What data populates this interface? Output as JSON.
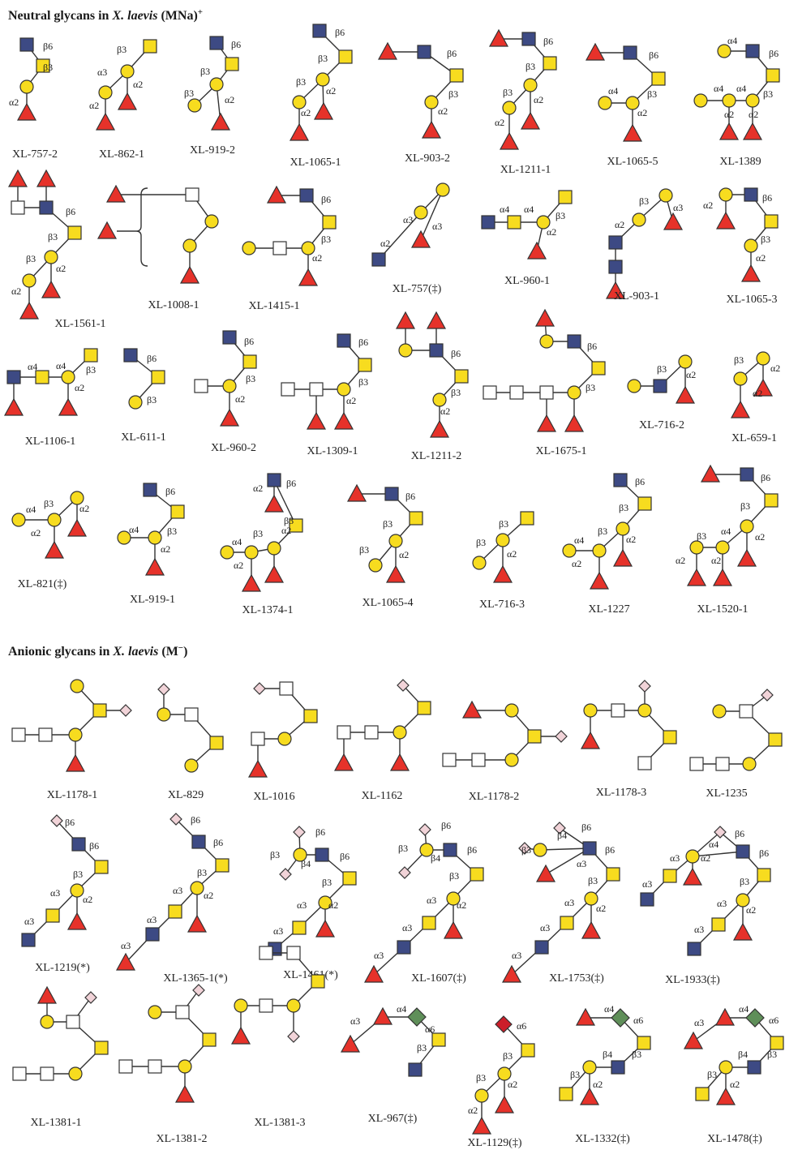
{
  "colors": {
    "glcnac": "#3d4a84",
    "galactose": "#f7dc1f",
    "galnac": "#f7dc1f",
    "fucose": "#e6322a",
    "hexose_white": "#ffffff",
    "sulfate_pink": "#f1d3d8",
    "kdn_green": "#5f8f59",
    "neu_red": "#cc1e2a",
    "line": "#333333"
  },
  "sections": {
    "neutral": {
      "prefix": "Neutral glycans in ",
      "species": "X. laevis",
      "suffix": " (MNa)",
      "sup": "+"
    },
    "anionic": {
      "prefix": "Anionic glycans in ",
      "species": "X. laevis",
      "suffix": " (M",
      "sup": "−",
      "close": ")"
    }
  },
  "glycans": [
    {
      "id": "XL-757-2",
      "links": [
        "β6",
        "β3",
        "α2"
      ],
      "symbols": [
        "glcnac-square",
        "galnac-square",
        "galactose-circle",
        "fucose-triangle"
      ]
    },
    {
      "id": "XL-862-1",
      "links": [
        "β3",
        "α3",
        "α2",
        "α2"
      ],
      "symbols": [
        "galnac-square",
        "galactose-circle",
        "galactose-circle",
        "fucose-triangle",
        "fucose-triangle"
      ]
    },
    {
      "id": "XL-919-2",
      "links": [
        "β6",
        "β3",
        "β3",
        "α2"
      ],
      "symbols": [
        "glcnac-square",
        "galnac-square",
        "galactose-circle",
        "galactose-circle",
        "fucose-triangle"
      ]
    },
    {
      "id": "XL-1065-1",
      "links": [
        "β6",
        "β3",
        "β3",
        "α2",
        "α2"
      ],
      "symbols": [
        "glcnac-square",
        "galnac-square",
        "galactose-circle",
        "galactose-circle",
        "fucose-triangle",
        "fucose-triangle"
      ]
    },
    {
      "id": "XL-903-2",
      "links": [
        "β6",
        "β3",
        "α2"
      ],
      "symbols": [
        "fucose-triangle",
        "glcnac-square",
        "galnac-square",
        "galactose-circle",
        "fucose-triangle"
      ]
    },
    {
      "id": "XL-1211-1",
      "links": [
        "β6",
        "β3",
        "β3",
        "α2",
        "α2"
      ],
      "symbols": [
        "fucose-triangle",
        "glcnac-square",
        "galnac-square",
        "galactose-circle",
        "galactose-circle",
        "fucose-triangle",
        "fucose-triangle"
      ]
    },
    {
      "id": "XL-1065-5",
      "links": [
        "β6",
        "α4",
        "β3",
        "α2"
      ],
      "symbols": [
        "fucose-triangle",
        "glcnac-square",
        "galnac-square",
        "galactose-circle",
        "galactose-circle",
        "fucose-triangle"
      ]
    },
    {
      "id": "XL-1389",
      "links": [
        "α4",
        "β6",
        "α4",
        "α4",
        "β3",
        "α2",
        "α2"
      ],
      "symbols": [
        "galactose-circle",
        "glcnac-square",
        "galnac-square",
        "galactose-circle",
        "galactose-circle",
        "galactose-circle",
        "fucose-triangle",
        "fucose-triangle"
      ]
    },
    {
      "id": "XL-1561-1",
      "links": [
        "β6",
        "β3",
        "β3",
        "α2",
        "α2"
      ],
      "symbols": [
        "fucose-triangle",
        "fucose-triangle",
        "hexose-square",
        "glcnac-square",
        "galnac-square",
        "galactose-circle",
        "galactose-circle",
        "fucose-triangle",
        "fucose-triangle"
      ]
    },
    {
      "id": "XL-1008-1",
      "links": [],
      "symbols": [
        "fucose-triangle",
        "fucose-triangle",
        "hexose-square",
        "galactose-circle",
        "galactose-circle",
        "fucose-triangle"
      ]
    },
    {
      "id": "XL-1415-1",
      "links": [
        "β6",
        "β3",
        "α2"
      ],
      "symbols": [
        "fucose-triangle",
        "glcnac-square",
        "galnac-square",
        "galactose-circle",
        "hexose-square",
        "galactose-circle",
        "fucose-triangle"
      ]
    },
    {
      "id": "XL-757(‡)",
      "links": [
        "α3",
        "α2",
        "α3"
      ],
      "symbols": [
        "galactose-circle",
        "galactose-circle",
        "glcnac-square",
        "fucose-triangle"
      ]
    },
    {
      "id": "XL-960-1",
      "links": [
        "α4",
        "α4",
        "β3",
        "α2"
      ],
      "symbols": [
        "glcnac-square",
        "galnac-square",
        "galactose-circle",
        "galnac-square",
        "fucose-triangle"
      ]
    },
    {
      "id": "XL-903-1",
      "links": [
        "β3",
        "α2",
        "α3"
      ],
      "symbols": [
        "galactose-circle",
        "galactose-circle",
        "glcnac-square",
        "glcnac-square",
        "fucose-triangle",
        "fucose-triangle"
      ]
    },
    {
      "id": "XL-1065-3",
      "links": [
        "β6",
        "α2",
        "β3",
        "α2"
      ],
      "symbols": [
        "galactose-circle",
        "glcnac-square",
        "galnac-square",
        "galactose-circle",
        "fucose-triangle",
        "fucose-triangle"
      ]
    },
    {
      "id": "XL-1106-1",
      "links": [
        "α4",
        "α4",
        "β3",
        "α2"
      ],
      "symbols": [
        "glcnac-square",
        "galnac-square",
        "galactose-circle",
        "galnac-square",
        "fucose-triangle",
        "fucose-triangle"
      ]
    },
    {
      "id": "XL-611-1",
      "links": [
        "β6",
        "β3"
      ],
      "symbols": [
        "glcnac-square",
        "galnac-square",
        "galactose-circle"
      ]
    },
    {
      "id": "XL-960-2",
      "links": [
        "β6",
        "β3",
        "α2"
      ],
      "symbols": [
        "glcnac-square",
        "galnac-square",
        "hexose-square",
        "galactose-circle",
        "fucose-triangle"
      ]
    },
    {
      "id": "XL-1309-1",
      "links": [
        "β6",
        "β3",
        "α2"
      ],
      "symbols": [
        "glcnac-square",
        "galnac-square",
        "hexose-square",
        "hexose-square",
        "galactose-circle",
        "fucose-triangle",
        "fucose-triangle"
      ]
    },
    {
      "id": "XL-1211-2",
      "links": [
        "β6",
        "β3",
        "α2"
      ],
      "symbols": [
        "fucose-triangle",
        "fucose-triangle",
        "galactose-circle",
        "glcnac-square",
        "galnac-square",
        "galactose-circle",
        "fucose-triangle"
      ]
    },
    {
      "id": "XL-1675-1",
      "links": [
        "β6",
        "β3"
      ],
      "symbols": [
        "fucose-triangle",
        "galactose-circle",
        "glcnac-square",
        "galnac-square",
        "hexose-square",
        "hexose-square",
        "hexose-square",
        "galactose-circle",
        "fucose-triangle",
        "fucose-triangle"
      ]
    },
    {
      "id": "XL-716-2",
      "links": [
        "β3",
        "α2"
      ],
      "symbols": [
        "galactose-circle",
        "glcnac-square",
        "galactose-circle",
        "fucose-triangle"
      ]
    },
    {
      "id": "XL-659-1",
      "links": [
        "β3",
        "α2",
        "α2"
      ],
      "symbols": [
        "galactose-circle",
        "galactose-circle",
        "fucose-triangle",
        "fucose-triangle"
      ]
    },
    {
      "id": "XL-821(‡)",
      "links": [
        "β3",
        "α4",
        "α2",
        "α2"
      ],
      "symbols": [
        "galactose-circle",
        "galactose-circle",
        "galactose-circle",
        "fucose-triangle",
        "fucose-triangle"
      ]
    },
    {
      "id": "XL-919-1",
      "links": [
        "β6",
        "α4",
        "β3",
        "α2"
      ],
      "symbols": [
        "glcnac-square",
        "galnac-square",
        "galactose-circle",
        "galactose-circle",
        "fucose-triangle"
      ]
    },
    {
      "id": "XL-1374-1",
      "links": [
        "β6",
        "α2",
        "β3",
        "α4",
        "β3",
        "α2",
        "α2"
      ],
      "symbols": [
        "glcnac-square",
        "fucose-triangle",
        "galnac-square",
        "galactose-circle",
        "galactose-circle",
        "galactose-circle",
        "fucose-triangle",
        "fucose-triangle"
      ]
    },
    {
      "id": "XL-1065-4",
      "links": [
        "β6",
        "β3",
        "β3",
        "α2"
      ],
      "symbols": [
        "fucose-triangle",
        "glcnac-square",
        "galnac-square",
        "galactose-circle",
        "galactose-circle",
        "fucose-triangle"
      ]
    },
    {
      "id": "XL-716-3",
      "links": [
        "β3",
        "β3",
        "α2"
      ],
      "symbols": [
        "galnac-square",
        "galactose-circle",
        "galactose-circle",
        "fucose-triangle"
      ]
    },
    {
      "id": "XL-1227",
      "links": [
        "β6",
        "β3",
        "α4",
        "β3",
        "α2",
        "α2"
      ],
      "symbols": [
        "glcnac-square",
        "galnac-square",
        "galactose-circle",
        "galactose-circle",
        "galactose-circle",
        "fucose-triangle",
        "fucose-triangle"
      ]
    },
    {
      "id": "XL-1520-1",
      "links": [
        "β6",
        "β3",
        "α4",
        "β3",
        "α2",
        "α2",
        "α2"
      ],
      "symbols": [
        "fucose-triangle",
        "glcnac-square",
        "galnac-square",
        "galactose-circle",
        "galactose-circle",
        "galactose-circle",
        "fucose-triangle",
        "fucose-triangle",
        "fucose-triangle"
      ]
    },
    {
      "id": "XL-1178-1",
      "links": [],
      "symbols": [
        "galactose-circle",
        "galnac-square",
        "sulfate-diamond",
        "hexose-square",
        "hexose-square",
        "galactose-circle",
        "fucose-triangle"
      ]
    },
    {
      "id": "XL-829",
      "links": [],
      "symbols": [
        "sulfate-diamond",
        "galactose-circle",
        "hexose-square",
        "galnac-square",
        "galactose-circle"
      ]
    },
    {
      "id": "XL-1016",
      "links": [],
      "symbols": [
        "sulfate-diamond",
        "hexose-square",
        "galnac-square",
        "galactose-circle",
        "hexose-square",
        "fucose-triangle"
      ]
    },
    {
      "id": "XL-1162",
      "links": [],
      "symbols": [
        "sulfate-diamond",
        "galnac-square",
        "hexose-square",
        "hexose-square",
        "galactose-circle",
        "fucose-triangle",
        "fucose-triangle"
      ]
    },
    {
      "id": "XL-1178-2",
      "links": [],
      "symbols": [
        "fucose-triangle",
        "galactose-circle",
        "galnac-square",
        "sulfate-diamond",
        "hexose-square",
        "hexose-square",
        "galactose-circle"
      ]
    },
    {
      "id": "XL-1178-3",
      "links": [],
      "symbols": [
        "sulfate-diamond",
        "galactose-circle",
        "hexose-square",
        "galactose-circle",
        "galnac-square",
        "hexose-square",
        "fucose-triangle"
      ]
    },
    {
      "id": "XL-1235",
      "links": [],
      "symbols": [
        "sulfate-diamond",
        "galactose-circle",
        "hexose-square",
        "galnac-square",
        "hexose-square",
        "hexose-square",
        "galactose-circle"
      ]
    },
    {
      "id": "XL-1219(*)",
      "links": [
        "β6",
        "β6",
        "β3",
        "α3",
        "α2",
        "α3"
      ],
      "symbols": [
        "sulfate-diamond",
        "glcnac-square",
        "galnac-square",
        "galactose-circle",
        "galnac-square",
        "fucose-triangle",
        "glcnac-square"
      ]
    },
    {
      "id": "XL-1365-1(*)",
      "links": [
        "β6",
        "β6",
        "β3",
        "α3",
        "α2",
        "α3",
        "α3"
      ],
      "symbols": [
        "sulfate-diamond",
        "glcnac-square",
        "galnac-square",
        "galactose-circle",
        "galnac-square",
        "fucose-triangle",
        "glcnac-square",
        "fucose-triangle"
      ]
    },
    {
      "id": "XL-1461(*)",
      "links": [
        "β6",
        "β3",
        "β4",
        "β6",
        "β3",
        "α3",
        "α2",
        "α3"
      ],
      "symbols": [
        "sulfate-diamond",
        "galactose-circle",
        "sulfate-diamond",
        "glcnac-square",
        "galnac-square",
        "galactose-circle",
        "galnac-square",
        "fucose-triangle",
        "glcnac-square"
      ]
    },
    {
      "id": "XL-1607(‡)",
      "links": [
        "β6",
        "β3",
        "β4",
        "β6",
        "β3",
        "α3",
        "α2",
        "α3",
        "α3"
      ],
      "symbols": [
        "sulfate-diamond",
        "galactose-circle",
        "sulfate-diamond",
        "glcnac-square",
        "galnac-square",
        "galactose-circle",
        "galnac-square",
        "fucose-triangle",
        "glcnac-square",
        "fucose-triangle"
      ]
    },
    {
      "id": "XL-1753(‡)",
      "links": [
        "β4",
        "β6",
        "β3",
        "α3",
        "β6",
        "β3",
        "α3",
        "α2",
        "α3",
        "α3"
      ],
      "symbols": [
        "sulfate-diamond",
        "sulfate-diamond",
        "galactose-circle",
        "fucose-triangle",
        "glcnac-square",
        "galnac-square",
        "galactose-circle",
        "galnac-square",
        "fucose-triangle",
        "glcnac-square",
        "fucose-triangle"
      ]
    },
    {
      "id": "XL-1933(‡)",
      "links": [
        "β6",
        "α4",
        "α3",
        "α2",
        "α3",
        "β6",
        "β3",
        "α3",
        "α2",
        "α3"
      ],
      "symbols": [
        "sulfate-diamond",
        "galactose-circle",
        "galnac-square",
        "fucose-triangle",
        "glcnac-square",
        "glcnac-square",
        "galnac-square",
        "galactose-circle",
        "galnac-square",
        "fucose-triangle",
        "glcnac-square"
      ]
    },
    {
      "id": "XL-1381-1",
      "links": [],
      "symbols": [
        "fucose-triangle",
        "galactose-circle",
        "hexose-square",
        "sulfate-diamond",
        "galnac-square",
        "hexose-square",
        "hexose-square",
        "galactose-circle"
      ]
    },
    {
      "id": "XL-1381-2",
      "links": [],
      "symbols": [
        "galactose-circle",
        "hexose-square",
        "sulfate-diamond",
        "galnac-square",
        "hexose-square",
        "hexose-square",
        "galactose-circle",
        "fucose-triangle"
      ]
    },
    {
      "id": "XL-1381-3",
      "links": [],
      "symbols": [
        "hexose-square",
        "hexose-square",
        "galnac-square",
        "galactose-circle",
        "hexose-square",
        "galactose-circle",
        "fucose-triangle",
        "sulfate-diamond"
      ]
    },
    {
      "id": "XL-967(‡)",
      "links": [
        "α4",
        "α6",
        "α3",
        "β3"
      ],
      "symbols": [
        "fucose-triangle",
        "kdn-diamond",
        "fucose-triangle",
        "galnac-square",
        "glcnac-square"
      ]
    },
    {
      "id": "XL-1129(‡)",
      "links": [
        "α6",
        "β3",
        "β3",
        "α2",
        "α2"
      ],
      "symbols": [
        "neu-diamond",
        "galnac-square",
        "galactose-circle",
        "galactose-circle",
        "fucose-triangle",
        "fucose-triangle"
      ]
    },
    {
      "id": "XL-1332(‡)",
      "links": [
        "α4",
        "α6",
        "β4",
        "β3",
        "β3",
        "α2"
      ],
      "symbols": [
        "fucose-triangle",
        "kdn-diamond",
        "galnac-square",
        "glcnac-square",
        "galactose-circle",
        "galnac-square",
        "fucose-triangle"
      ]
    },
    {
      "id": "XL-1478(‡)",
      "links": [
        "α3",
        "α4",
        "α6",
        "β4",
        "β3",
        "β3",
        "α2"
      ],
      "symbols": [
        "fucose-triangle",
        "fucose-triangle",
        "kdn-diamond",
        "galnac-square",
        "glcnac-square",
        "galactose-circle",
        "galnac-square",
        "fucose-triangle"
      ]
    }
  ]
}
